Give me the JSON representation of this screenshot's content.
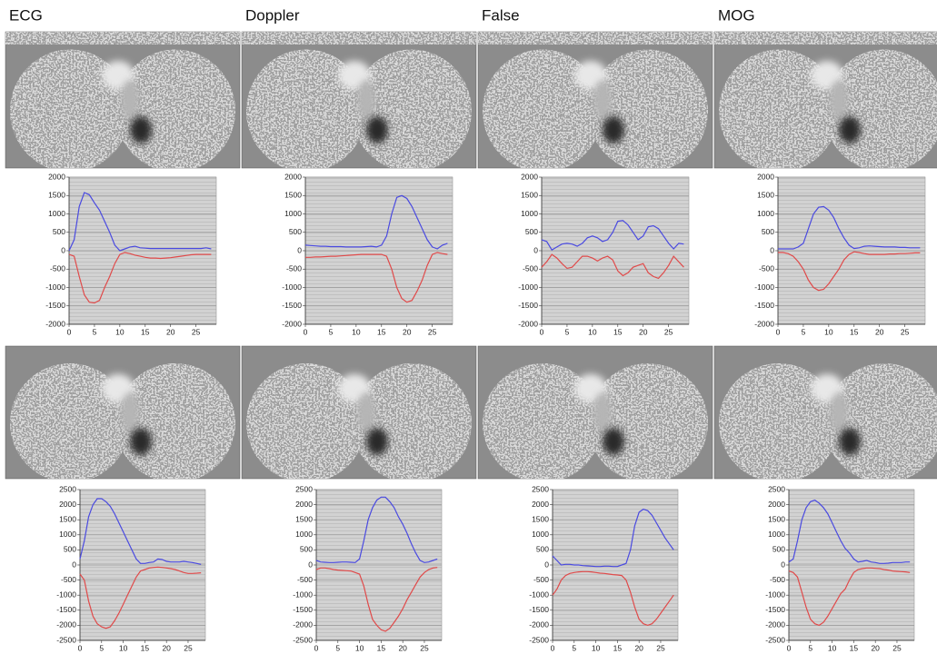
{
  "headers": [
    "ECG",
    "Doppler",
    "False",
    "MOG"
  ],
  "chart_data": [
    {
      "type": "line",
      "x": [
        0,
        1,
        2,
        3,
        4,
        5,
        6,
        7,
        8,
        9,
        10,
        11,
        12,
        13,
        14,
        15,
        16,
        17,
        18,
        19,
        20,
        21,
        22,
        23,
        24,
        25,
        26,
        27,
        28
      ],
      "xlim": [
        0,
        29
      ],
      "xticks": [
        0,
        5,
        10,
        15,
        20,
        25
      ],
      "ylim": [
        -2000,
        2000
      ],
      "yticks": [
        -2000,
        -1500,
        -1000,
        -500,
        0,
        500,
        1000,
        1500,
        2000
      ],
      "grid": true,
      "series": [
        {
          "color": "#4a4ae0",
          "values": [
            0,
            300,
            1200,
            1580,
            1520,
            1300,
            1100,
            800,
            500,
            150,
            0,
            50,
            100,
            120,
            80,
            70,
            60,
            60,
            60,
            60,
            60,
            60,
            60,
            60,
            60,
            60,
            60,
            80,
            50
          ]
        },
        {
          "color": "#e04a4a",
          "values": [
            -100,
            -150,
            -700,
            -1200,
            -1400,
            -1420,
            -1350,
            -1000,
            -700,
            -350,
            -100,
            -50,
            -80,
            -120,
            -150,
            -180,
            -200,
            -200,
            -210,
            -200,
            -190,
            -170,
            -150,
            -130,
            -110,
            -100,
            -100,
            -100,
            -100
          ]
        }
      ]
    },
    {
      "type": "line",
      "x": [
        0,
        1,
        2,
        3,
        4,
        5,
        6,
        7,
        8,
        9,
        10,
        11,
        12,
        13,
        14,
        15,
        16,
        17,
        18,
        19,
        20,
        21,
        22,
        23,
        24,
        25,
        26,
        27,
        28
      ],
      "xlim": [
        0,
        29
      ],
      "xticks": [
        0,
        5,
        10,
        15,
        20,
        25
      ],
      "ylim": [
        -2000,
        2000
      ],
      "yticks": [
        -2000,
        -1500,
        -1000,
        -500,
        0,
        500,
        1000,
        1500,
        2000
      ],
      "grid": true,
      "series": [
        {
          "color": "#4a4ae0",
          "values": [
            150,
            140,
            130,
            120,
            120,
            110,
            110,
            110,
            100,
            100,
            100,
            100,
            110,
            120,
            100,
            150,
            400,
            1000,
            1450,
            1500,
            1420,
            1200,
            900,
            600,
            300,
            100,
            50,
            150,
            200
          ]
        },
        {
          "color": "#e04a4a",
          "values": [
            -180,
            -180,
            -170,
            -170,
            -160,
            -150,
            -150,
            -140,
            -130,
            -120,
            -110,
            -100,
            -100,
            -100,
            -100,
            -100,
            -150,
            -500,
            -1000,
            -1300,
            -1400,
            -1350,
            -1100,
            -800,
            -400,
            -100,
            -50,
            -80,
            -100
          ]
        }
      ]
    },
    {
      "type": "line",
      "x": [
        0,
        1,
        2,
        3,
        4,
        5,
        6,
        7,
        8,
        9,
        10,
        11,
        12,
        13,
        14,
        15,
        16,
        17,
        18,
        19,
        20,
        21,
        22,
        23,
        24,
        25,
        26,
        27,
        28
      ],
      "xlim": [
        0,
        29
      ],
      "xticks": [
        0,
        5,
        10,
        15,
        20,
        25
      ],
      "ylim": [
        -2000,
        2000
      ],
      "yticks": [
        -2000,
        -1500,
        -1000,
        -500,
        0,
        500,
        1000,
        1500,
        2000
      ],
      "grid": true,
      "series": [
        {
          "color": "#4a4ae0",
          "values": [
            300,
            250,
            20,
            100,
            180,
            200,
            180,
            120,
            200,
            350,
            400,
            350,
            250,
            300,
            500,
            800,
            820,
            700,
            500,
            300,
            400,
            650,
            680,
            600,
            400,
            200,
            50,
            200,
            180
          ]
        },
        {
          "color": "#e04a4a",
          "values": [
            -450,
            -300,
            -100,
            -200,
            -350,
            -480,
            -450,
            -300,
            -150,
            -150,
            -200,
            -280,
            -200,
            -150,
            -250,
            -550,
            -680,
            -600,
            -450,
            -400,
            -350,
            -600,
            -700,
            -750,
            -600,
            -400,
            -150,
            -300,
            -450
          ]
        }
      ]
    },
    {
      "type": "line",
      "x": [
        0,
        1,
        2,
        3,
        4,
        5,
        6,
        7,
        8,
        9,
        10,
        11,
        12,
        13,
        14,
        15,
        16,
        17,
        18,
        19,
        20,
        21,
        22,
        23,
        24,
        25,
        26,
        27,
        28
      ],
      "xlim": [
        0,
        29
      ],
      "xticks": [
        0,
        5,
        10,
        15,
        20,
        25
      ],
      "ylim": [
        -2000,
        2000
      ],
      "yticks": [
        -2000,
        -1500,
        -1000,
        -500,
        0,
        500,
        1000,
        1500,
        2000
      ],
      "grid": true,
      "series": [
        {
          "color": "#4a4ae0",
          "values": [
            50,
            50,
            50,
            50,
            100,
            200,
            600,
            1000,
            1180,
            1200,
            1100,
            900,
            600,
            350,
            150,
            60,
            80,
            120,
            130,
            120,
            110,
            100,
            100,
            100,
            90,
            90,
            80,
            80,
            80
          ]
        },
        {
          "color": "#e04a4a",
          "values": [
            -50,
            -50,
            -80,
            -150,
            -300,
            -500,
            -800,
            -1000,
            -1080,
            -1050,
            -900,
            -700,
            -500,
            -250,
            -100,
            -30,
            -50,
            -80,
            -100,
            -100,
            -100,
            -100,
            -90,
            -90,
            -80,
            -80,
            -70,
            -60,
            -60
          ]
        }
      ]
    },
    {
      "type": "line",
      "x": [
        0,
        1,
        2,
        3,
        4,
        5,
        6,
        7,
        8,
        9,
        10,
        11,
        12,
        13,
        14,
        15,
        16,
        17,
        18,
        19,
        20,
        21,
        22,
        23,
        24,
        25,
        26,
        27,
        28
      ],
      "xlim": [
        0,
        29
      ],
      "xticks": [
        0,
        5,
        10,
        15,
        20,
        25
      ],
      "ylim": [
        -2500,
        2500
      ],
      "yticks": [
        -2500,
        -2000,
        -1500,
        -1000,
        -500,
        0,
        500,
        1000,
        1500,
        2000,
        2500
      ],
      "grid": true,
      "series": [
        {
          "color": "#4a4ae0",
          "values": [
            200,
            800,
            1600,
            2000,
            2200,
            2200,
            2100,
            1950,
            1700,
            1400,
            1100,
            800,
            500,
            200,
            50,
            50,
            80,
            100,
            200,
            180,
            120,
            100,
            100,
            100,
            120,
            100,
            80,
            50,
            20
          ]
        },
        {
          "color": "#e04a4a",
          "values": [
            -300,
            -500,
            -1200,
            -1700,
            -1950,
            -2050,
            -2100,
            -2050,
            -1850,
            -1600,
            -1300,
            -1000,
            -700,
            -400,
            -200,
            -150,
            -100,
            -80,
            -70,
            -80,
            -100,
            -120,
            -150,
            -200,
            -250,
            -280,
            -280,
            -270,
            -260
          ]
        }
      ]
    },
    {
      "type": "line",
      "x": [
        0,
        1,
        2,
        3,
        4,
        5,
        6,
        7,
        8,
        9,
        10,
        11,
        12,
        13,
        14,
        15,
        16,
        17,
        18,
        19,
        20,
        21,
        22,
        23,
        24,
        25,
        26,
        27,
        28
      ],
      "xlim": [
        0,
        29
      ],
      "xticks": [
        0,
        5,
        10,
        15,
        20,
        25
      ],
      "ylim": [
        -2500,
        2500
      ],
      "yticks": [
        -2500,
        -2000,
        -1500,
        -1000,
        -500,
        0,
        500,
        1000,
        1500,
        2000,
        2500
      ],
      "grid": true,
      "series": [
        {
          "color": "#4a4ae0",
          "values": [
            150,
            100,
            90,
            80,
            80,
            90,
            100,
            100,
            90,
            80,
            200,
            800,
            1500,
            1900,
            2150,
            2250,
            2250,
            2100,
            1900,
            1600,
            1350,
            1050,
            700,
            400,
            150,
            80,
            100,
            150,
            200
          ]
        },
        {
          "color": "#e04a4a",
          "values": [
            -150,
            -100,
            -100,
            -120,
            -150,
            -170,
            -180,
            -190,
            -200,
            -250,
            -300,
            -700,
            -1300,
            -1800,
            -2000,
            -2150,
            -2200,
            -2100,
            -1900,
            -1700,
            -1450,
            -1150,
            -900,
            -650,
            -400,
            -250,
            -150,
            -100,
            -80
          ]
        }
      ]
    },
    {
      "type": "line",
      "x": [
        0,
        1,
        2,
        3,
        4,
        5,
        6,
        7,
        8,
        9,
        10,
        11,
        12,
        13,
        14,
        15,
        16,
        17,
        18,
        19,
        20,
        21,
        22,
        23,
        24,
        25,
        26,
        27,
        28
      ],
      "xlim": [
        0,
        29
      ],
      "xticks": [
        0,
        5,
        10,
        15,
        20,
        25
      ],
      "ylim": [
        -2500,
        2500
      ],
      "yticks": [
        -2500,
        -2000,
        -1500,
        -1000,
        -500,
        0,
        500,
        1000,
        1500,
        2000,
        2500
      ],
      "grid": true,
      "series": [
        {
          "color": "#4a4ae0",
          "values": [
            300,
            150,
            0,
            20,
            20,
            0,
            0,
            -20,
            -30,
            -40,
            -50,
            -50,
            -40,
            -40,
            -50,
            -50,
            0,
            50,
            500,
            1300,
            1750,
            1850,
            1800,
            1650,
            1400,
            1150,
            900,
            700,
            500
          ]
        },
        {
          "color": "#e04a4a",
          "values": [
            -1000,
            -800,
            -500,
            -350,
            -280,
            -250,
            -230,
            -220,
            -220,
            -230,
            -250,
            -270,
            -280,
            -300,
            -320,
            -330,
            -350,
            -500,
            -900,
            -1400,
            -1800,
            -1950,
            -2000,
            -1950,
            -1800,
            -1600,
            -1400,
            -1200,
            -1000
          ]
        }
      ]
    },
    {
      "type": "line",
      "x": [
        0,
        1,
        2,
        3,
        4,
        5,
        6,
        7,
        8,
        9,
        10,
        11,
        12,
        13,
        14,
        15,
        16,
        17,
        18,
        19,
        20,
        21,
        22,
        23,
        24,
        25,
        26,
        27,
        28
      ],
      "xlim": [
        0,
        29
      ],
      "xticks": [
        0,
        5,
        10,
        15,
        20,
        25
      ],
      "ylim": [
        -2500,
        2500
      ],
      "yticks": [
        -2500,
        -2000,
        -1500,
        -1000,
        -500,
        0,
        500,
        1000,
        1500,
        2000,
        2500
      ],
      "grid": true,
      "series": [
        {
          "color": "#4a4ae0",
          "values": [
            100,
            200,
            800,
            1500,
            1900,
            2100,
            2150,
            2050,
            1900,
            1700,
            1400,
            1100,
            800,
            550,
            400,
            200,
            100,
            120,
            150,
            100,
            80,
            50,
            50,
            60,
            80,
            80,
            80,
            100,
            100
          ]
        },
        {
          "color": "#e04a4a",
          "values": [
            -200,
            -250,
            -400,
            -900,
            -1400,
            -1800,
            -1950,
            -2000,
            -1900,
            -1700,
            -1450,
            -1200,
            -950,
            -800,
            -500,
            -250,
            -150,
            -120,
            -100,
            -100,
            -110,
            -120,
            -150,
            -170,
            -200,
            -210,
            -220,
            -230,
            -250
          ]
        }
      ]
    }
  ]
}
